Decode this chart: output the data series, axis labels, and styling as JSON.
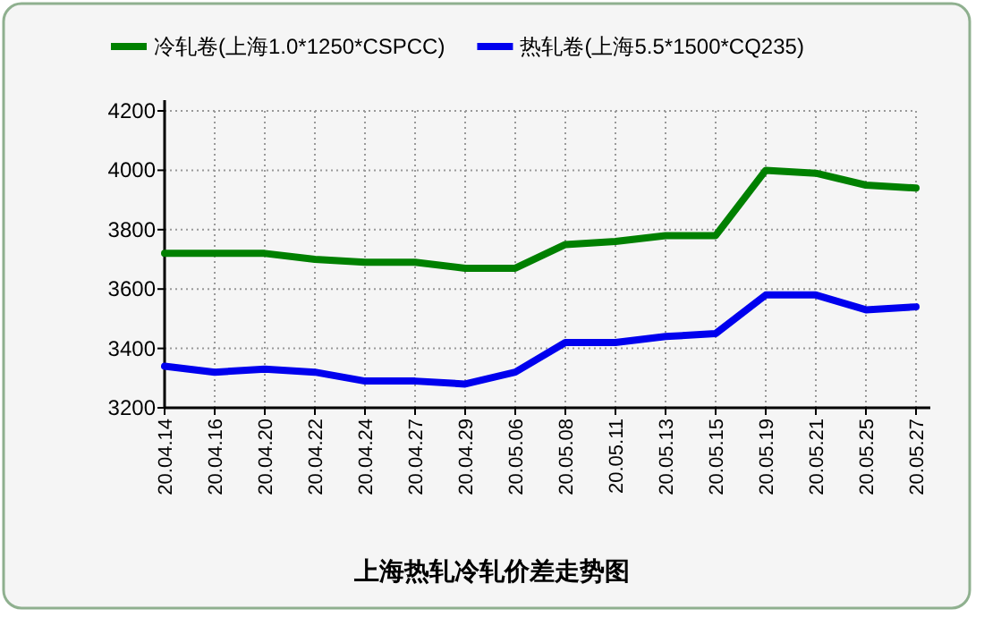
{
  "chart_data": {
    "type": "line",
    "title": "上海热轧冷轧价差走势图",
    "categories": [
      "20.04.14",
      "20.04.16",
      "20.04.20",
      "20.04.22",
      "20.04.24",
      "20.04.27",
      "20.04.29",
      "20.05.06",
      "20.05.08",
      "20.05.11",
      "20.05.13",
      "20.05.15",
      "20.05.19",
      "20.05.21",
      "20.05.25",
      "20.05.27"
    ],
    "series": [
      {
        "name": "冷轧卷(上海1.0*1250*CSPCC)",
        "color": "#008000",
        "values": [
          3720,
          3720,
          3720,
          3700,
          3690,
          3690,
          3670,
          3670,
          3750,
          3760,
          3780,
          3780,
          4000,
          3990,
          3950,
          3940
        ]
      },
      {
        "name": "热轧卷(上海5.5*1500*CQ235)",
        "color": "#0000ee",
        "values": [
          3340,
          3320,
          3330,
          3320,
          3290,
          3290,
          3280,
          3320,
          3420,
          3420,
          3440,
          3450,
          3580,
          3580,
          3530,
          3540
        ]
      }
    ],
    "ylim": [
      3200,
      4200
    ],
    "yticks": [
      3200,
      3400,
      3600,
      3800,
      4000,
      4200
    ],
    "grid": true,
    "legend": "top"
  }
}
